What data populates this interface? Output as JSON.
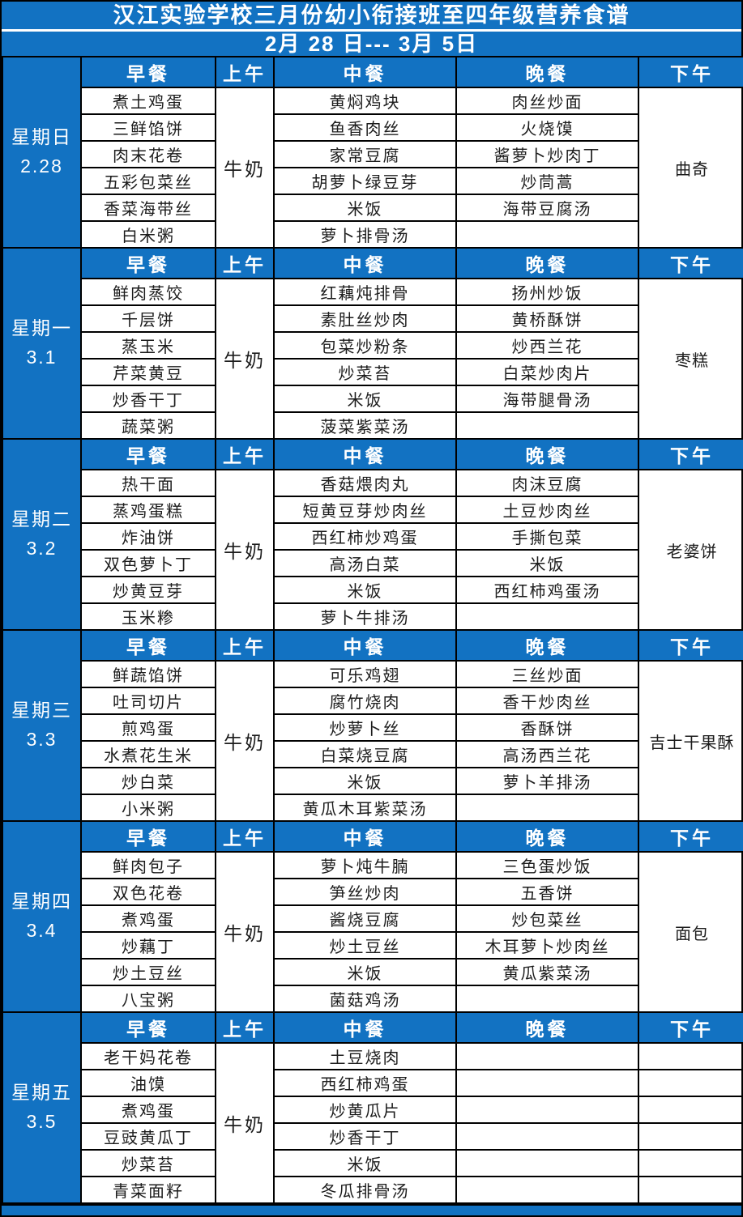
{
  "title": "汉江实验学校三月份幼小衔接班至四年级营养食谱",
  "date_range": "2月 28 日--- 3月 5日",
  "columns": [
    "早餐",
    "上午",
    "中餐",
    "晚餐",
    "下午"
  ],
  "colors": {
    "primary_blue": "#1272C2",
    "header_text": "#ffffff",
    "cell_text": "#1c1c1c",
    "border": "#000000"
  },
  "days": [
    {
      "label": "星期日",
      "date": "2.28",
      "breakfast": [
        "煮土鸡蛋",
        "三鲜馅饼",
        "肉末花卷",
        "五彩包菜丝",
        "香菜海带丝",
        "白米粥"
      ],
      "morning": "牛奶",
      "lunch": [
        "黄焖鸡块",
        "鱼香肉丝",
        "家常豆腐",
        "胡萝卜绿豆芽",
        "米饭",
        "萝卜排骨汤"
      ],
      "dinner": [
        "肉丝炒面",
        "火烧馍",
        "酱萝卜炒肉丁",
        "炒茼蒿",
        "海带豆腐汤",
        ""
      ],
      "afternoon": "曲奇",
      "afternoon_split": false
    },
    {
      "label": "星期一",
      "date": "3.1",
      "breakfast": [
        "鲜肉蒸饺",
        "千层饼",
        "蒸玉米",
        "芹菜黄豆",
        "炒香干丁",
        "蔬菜粥"
      ],
      "morning": "牛奶",
      "lunch": [
        "红藕炖排骨",
        "素肚丝炒肉",
        "包菜炒粉条",
        "炒菜苔",
        "米饭",
        "菠菜紫菜汤"
      ],
      "dinner": [
        "扬州炒饭",
        "黄桥酥饼",
        "炒西兰花",
        "白菜炒肉片",
        "海带腿骨汤",
        ""
      ],
      "afternoon": "枣糕",
      "afternoon_split": false
    },
    {
      "label": "星期二",
      "date": "3.2",
      "breakfast": [
        "热干面",
        "蒸鸡蛋糕",
        "炸油饼",
        "双色萝卜丁",
        "炒黄豆芽",
        "玉米糁"
      ],
      "morning": "牛奶",
      "lunch": [
        "香菇煨肉丸",
        "短黄豆芽炒肉丝",
        "西红柿炒鸡蛋",
        "高汤白菜",
        "米饭",
        "萝卜牛排汤"
      ],
      "dinner": [
        "肉沫豆腐",
        "土豆炒肉丝",
        "手撕包菜",
        "米饭",
        "西红柿鸡蛋汤",
        ""
      ],
      "afternoon": "老婆饼",
      "afternoon_split": false
    },
    {
      "label": "星期三",
      "date": "3.3",
      "breakfast": [
        "鲜蔬馅饼",
        "吐司切片",
        "煎鸡蛋",
        "水煮花生米",
        "炒白菜",
        "小米粥"
      ],
      "morning": "牛奶",
      "lunch": [
        "可乐鸡翅",
        "腐竹烧肉",
        "炒萝卜丝",
        "白菜烧豆腐",
        "米饭",
        "黄瓜木耳紫菜汤"
      ],
      "dinner": [
        "三丝炒面",
        "香干炒肉丝",
        "香酥饼",
        "高汤西兰花",
        "萝卜羊排汤",
        ""
      ],
      "afternoon": "吉士干果酥",
      "afternoon_split": false
    },
    {
      "label": "星期四",
      "date": "3.4",
      "breakfast": [
        "鲜肉包子",
        "双色花卷",
        "煮鸡蛋",
        "炒藕丁",
        "炒土豆丝",
        "八宝粥"
      ],
      "morning": "牛奶",
      "lunch": [
        "萝卜炖牛腩",
        "笋丝炒肉",
        "酱烧豆腐",
        "炒土豆丝",
        "米饭",
        "菌菇鸡汤"
      ],
      "dinner": [
        "三色蛋炒饭",
        "五香饼",
        "炒包菜丝",
        "木耳萝卜炒肉丝",
        "黄瓜紫菜汤",
        ""
      ],
      "afternoon": "面包",
      "afternoon_split": false
    },
    {
      "label": "星期五",
      "date": "3.5",
      "breakfast": [
        "老干妈花卷",
        "油馍",
        "煮鸡蛋",
        "豆豉黄瓜丁",
        "炒菜苔",
        "青菜面籽"
      ],
      "morning": "牛奶",
      "lunch": [
        "土豆烧肉",
        "西红柿鸡蛋",
        "炒黄瓜片",
        "炒香干丁",
        "米饭",
        "冬瓜排骨汤"
      ],
      "dinner": [
        "",
        "",
        "",
        "",
        "",
        ""
      ],
      "afternoon": "",
      "afternoon_split": true
    }
  ]
}
